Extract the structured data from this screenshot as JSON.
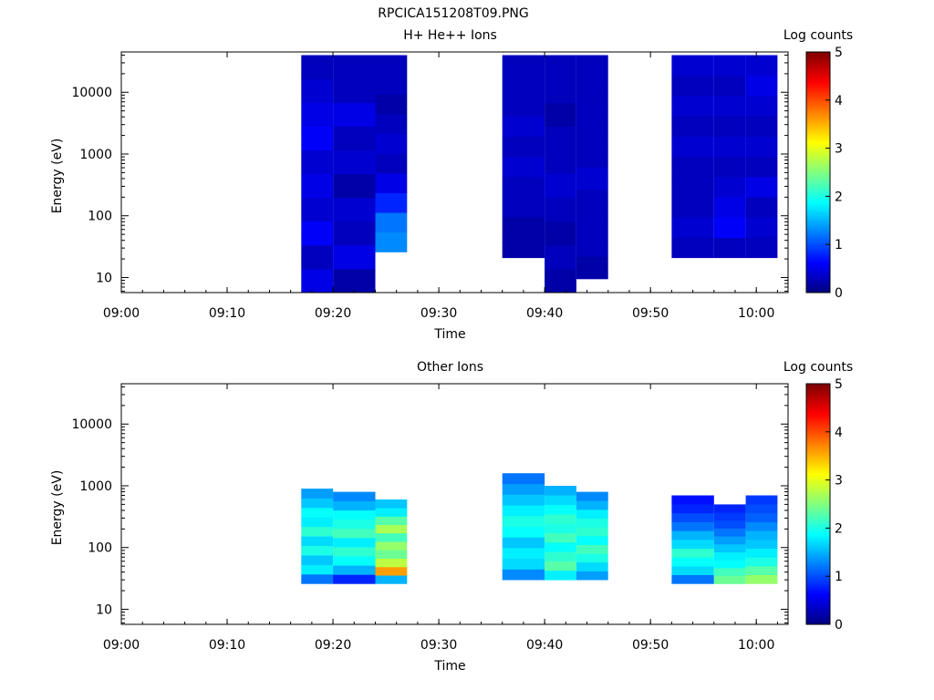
{
  "file_name": "RPCICA151208T09.PNG",
  "chart_data": [
    {
      "type": "heatmap",
      "title": "H+ He++ Ions",
      "xlabel": "Time",
      "ylabel": "Energy (eV)",
      "yscale": "log",
      "ylim": [
        5.7,
        45000
      ],
      "xlim": [
        "09:00",
        "10:03"
      ],
      "x_ticks": [
        "09:00",
        "09:10",
        "09:20",
        "09:30",
        "09:40",
        "09:50",
        "10:00"
      ],
      "y_ticks": [
        "10",
        "100",
        "1000",
        "10000"
      ],
      "colorbar": {
        "label": "Log counts",
        "range": [
          0,
          5
        ],
        "ticks": [
          "0",
          "1",
          "2",
          "3",
          "4",
          "5"
        ]
      },
      "time_bins": [
        {
          "start": "09:17",
          "end": "09:20",
          "emin": 5.7,
          "emax": 40000,
          "levels": [
            0.5,
            0.3,
            0.6,
            0.4,
            0.5,
            0.4,
            0.6,
            0.5,
            0.4,
            0.3
          ]
        },
        {
          "start": "09:20",
          "end": "09:24",
          "emin": 5.7,
          "emax": 40000,
          "levels": [
            0.2,
            0.5,
            0.3,
            0.4,
            0.2,
            0.4,
            0.3,
            0.5,
            0.3,
            0.3
          ]
        },
        {
          "start": "09:24",
          "end": "09:27",
          "emin": 26,
          "emax": 40000,
          "levels": [
            1.3,
            1.2,
            0.8,
            0.5,
            0.3,
            0.4,
            0.3,
            0.2,
            0.3,
            0.3
          ]
        },
        {
          "start": "09:36",
          "end": "09:40",
          "emin": 21,
          "emax": 40000,
          "levels": [
            0.2,
            0.2,
            0.3,
            0.3,
            0.4,
            0.3,
            0.4,
            0.3,
            0.3,
            0.3
          ]
        },
        {
          "start": "09:40",
          "end": "09:43",
          "emin": 5.7,
          "emax": 40000,
          "levels": [
            0.2,
            0.3,
            0.2,
            0.3,
            0.4,
            0.3,
            0.3,
            0.2,
            0.3,
            0.3
          ]
        },
        {
          "start": "09:43",
          "end": "09:46",
          "emin": 9.5,
          "emax": 40000,
          "levels": [
            0.2,
            0.3,
            0.3,
            0.3,
            0.4,
            0.3,
            0.3,
            0.3,
            0.3,
            0.3
          ]
        },
        {
          "start": "09:52",
          "end": "09:56",
          "emin": 21,
          "emax": 40000,
          "levels": [
            0.3,
            0.4,
            0.3,
            0.3,
            0.3,
            0.4,
            0.3,
            0.4,
            0.3,
            0.4
          ]
        },
        {
          "start": "09:56",
          "end": "09:59",
          "emin": 21,
          "emax": 40000,
          "levels": [
            0.3,
            0.6,
            0.5,
            0.4,
            0.3,
            0.4,
            0.3,
            0.4,
            0.3,
            0.4
          ]
        },
        {
          "start": "09:59",
          "end": "10:02",
          "emin": 21,
          "emax": 40000,
          "levels": [
            0.3,
            0.4,
            0.3,
            0.5,
            0.3,
            0.4,
            0.3,
            0.4,
            0.5,
            0.4
          ]
        }
      ]
    },
    {
      "type": "heatmap",
      "title": "Other Ions",
      "xlabel": "Time",
      "ylabel": "Energy (eV)",
      "yscale": "log",
      "ylim": [
        5.7,
        45000
      ],
      "xlim": [
        "09:00",
        "10:03"
      ],
      "x_ticks": [
        "09:00",
        "09:10",
        "09:20",
        "09:30",
        "09:40",
        "09:50",
        "10:00"
      ],
      "y_ticks": [
        "10",
        "100",
        "1000",
        "10000"
      ],
      "colorbar": {
        "label": "Log counts",
        "range": [
          0,
          5
        ],
        "ticks": [
          "0",
          "1",
          "2",
          "3",
          "4",
          "5"
        ]
      },
      "time_bins": [
        {
          "start": "09:17",
          "end": "09:20",
          "emin": 26,
          "emax": 900,
          "levels": [
            1.2,
            1.8,
            1.6,
            2.0,
            1.7,
            2.1,
            1.8,
            1.9,
            1.6,
            1.4
          ]
        },
        {
          "start": "09:20",
          "end": "09:24",
          "emin": 26,
          "emax": 800,
          "levels": [
            0.8,
            1.5,
            1.9,
            2.1,
            1.8,
            2.2,
            2.0,
            1.9,
            1.5,
            1.3
          ]
        },
        {
          "start": "09:24",
          "end": "09:27",
          "emin": 26,
          "emax": 600,
          "levels": [
            1.5,
            3.6,
            2.8,
            2.4,
            2.6,
            2.2,
            2.7,
            2.3,
            1.8,
            1.6
          ]
        },
        {
          "start": "09:36",
          "end": "09:40",
          "emin": 30,
          "emax": 1600,
          "levels": [
            1.3,
            1.7,
            1.8,
            1.6,
            1.9,
            2.0,
            1.8,
            1.6,
            1.4,
            1.2
          ]
        },
        {
          "start": "09:40",
          "end": "09:43",
          "emin": 30,
          "emax": 1000,
          "levels": [
            1.8,
            2.3,
            2.1,
            1.9,
            2.2,
            2.0,
            2.1,
            1.9,
            1.7,
            1.5
          ]
        },
        {
          "start": "09:43",
          "end": "09:46",
          "emin": 30,
          "emax": 800,
          "levels": [
            1.4,
            1.7,
            2.0,
            2.2,
            1.9,
            2.1,
            2.0,
            1.8,
            1.5,
            1.3
          ]
        },
        {
          "start": "09:52",
          "end": "09:56",
          "emin": 26,
          "emax": 700,
          "levels": [
            1.2,
            1.7,
            1.9,
            2.1,
            1.7,
            1.5,
            1.2,
            1.0,
            0.8,
            0.7
          ]
        },
        {
          "start": "09:56",
          "end": "09:59",
          "emin": 26,
          "emax": 500,
          "levels": [
            2.4,
            2.2,
            1.9,
            1.8,
            1.6,
            1.4,
            1.2,
            1.0,
            0.9,
            0.8
          ]
        },
        {
          "start": "09:59",
          "end": "10:02",
          "emin": 26,
          "emax": 700,
          "levels": [
            2.6,
            2.3,
            2.0,
            1.8,
            1.6,
            1.5,
            1.3,
            1.1,
            1.0,
            0.9
          ]
        }
      ]
    }
  ]
}
